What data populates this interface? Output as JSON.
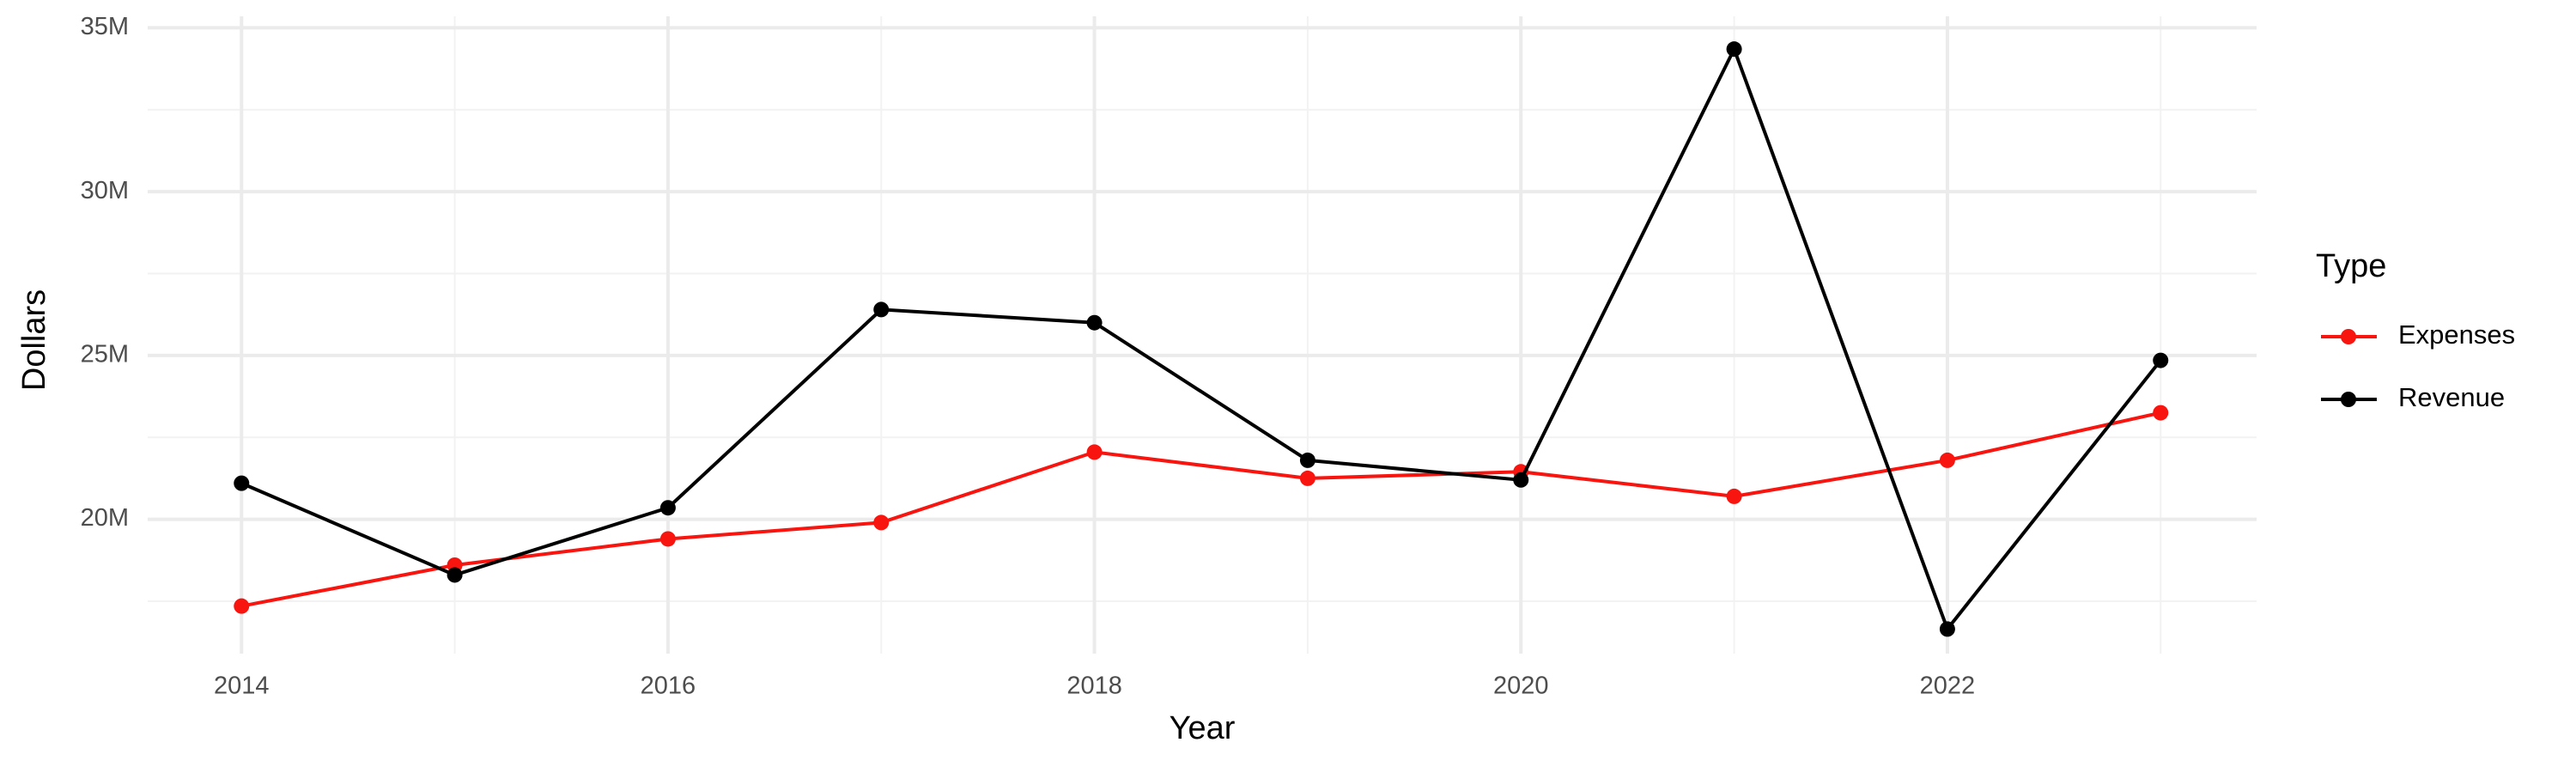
{
  "chart_data": {
    "type": "line",
    "x_label": "Year",
    "y_label": "Dollars",
    "legend_title": "Type",
    "x": [
      2014,
      2015,
      2016,
      2017,
      2018,
      2019,
      2020,
      2021,
      2022,
      2023
    ],
    "series": [
      {
        "name": "Expenses",
        "color": "#f8140f",
        "values": [
          17350000,
          18600000,
          19400000,
          19900000,
          22050000,
          21250000,
          21450000,
          20700000,
          21800000,
          23250000
        ]
      },
      {
        "name": "Revenue",
        "color": "#000000",
        "values": [
          21100000,
          18300000,
          20350000,
          26400000,
          26000000,
          21800000,
          21200000,
          34350000,
          16650000,
          24850000
        ]
      }
    ],
    "xlim": [
      2013.56,
      2023.45
    ],
    "xticks": [
      2014,
      2016,
      2018,
      2020,
      2022
    ],
    "ylim": [
      15900000,
      35350000
    ],
    "yticks": [
      {
        "value": 20000000,
        "label": "20M"
      },
      {
        "value": 25000000,
        "label": "25M"
      },
      {
        "value": 30000000,
        "label": "30M"
      },
      {
        "value": 35000000,
        "label": "35M"
      }
    ],
    "grid": true,
    "legend_position": "right"
  }
}
